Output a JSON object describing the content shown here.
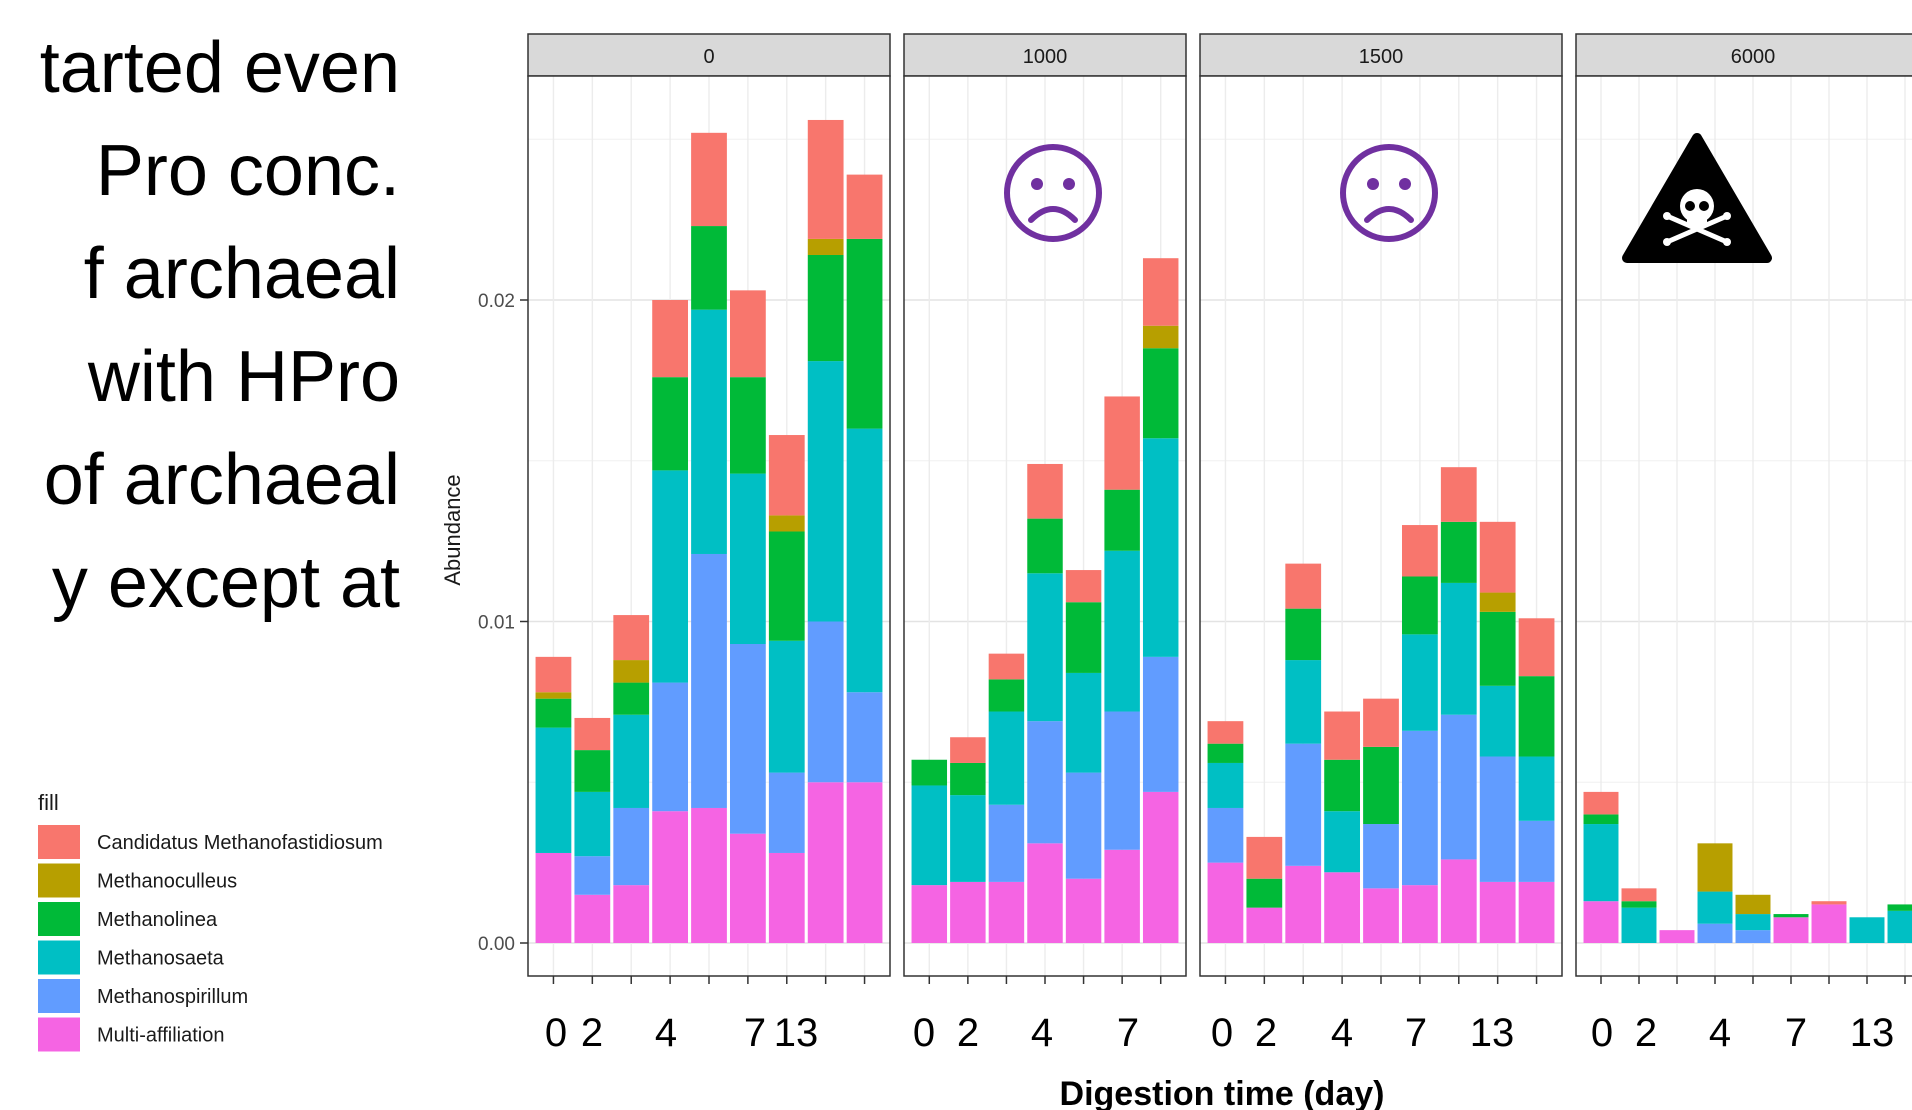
{
  "slide": {
    "lines": [
      "tarted even",
      "Pro conc.",
      "f archaeal",
      " with HPro",
      "of archaeal",
      "y except at"
    ]
  },
  "chart_data": {
    "type": "bar",
    "stacked": true,
    "facets": [
      {
        "label": "0",
        "annotation": "",
        "bars": [
          {
            "Multi-affiliation": 0.0028,
            "Methanospirillum": 0.0,
            "Methanosaeta": 0.0039,
            "Methanolinea": 0.0009,
            "Methanoculleus": 0.0002,
            "Candidatus Methanofastidiosum": 0.0011
          },
          {
            "Multi-affiliation": 0.0015,
            "Methanospirillum": 0.0012,
            "Methanosaeta": 0.002,
            "Methanolinea": 0.0013,
            "Methanoculleus": 0.0,
            "Candidatus Methanofastidiosum": 0.001
          },
          {
            "Multi-affiliation": 0.0018,
            "Methanospirillum": 0.0024,
            "Methanosaeta": 0.0029,
            "Methanolinea": 0.001,
            "Methanoculleus": 0.0007,
            "Candidatus Methanofastidiosum": 0.0014
          },
          {
            "Multi-affiliation": 0.0041,
            "Methanospirillum": 0.004,
            "Methanosaeta": 0.0066,
            "Methanolinea": 0.0029,
            "Methanoculleus": 0.0,
            "Candidatus Methanofastidiosum": 0.0024
          },
          {
            "Multi-affiliation": 0.0042,
            "Methanospirillum": 0.0079,
            "Methanosaeta": 0.0076,
            "Methanolinea": 0.0026,
            "Methanoculleus": 0.0,
            "Candidatus Methanofastidiosum": 0.0029
          },
          {
            "Multi-affiliation": 0.0034,
            "Methanospirillum": 0.0059,
            "Methanosaeta": 0.0053,
            "Methanolinea": 0.003,
            "Methanoculleus": 0.0,
            "Candidatus Methanofastidiosum": 0.0027
          },
          {
            "Multi-affiliation": 0.0028,
            "Methanospirillum": 0.0025,
            "Methanosaeta": 0.0041,
            "Methanolinea": 0.0034,
            "Methanoculleus": 0.0005,
            "Candidatus Methanofastidiosum": 0.0025
          },
          {
            "Multi-affiliation": 0.005,
            "Methanospirillum": 0.005,
            "Methanosaeta": 0.0081,
            "Methanolinea": 0.0033,
            "Methanoculleus": 0.0005,
            "Candidatus Methanofastidiosum": 0.0037
          },
          {
            "Multi-affiliation": 0.005,
            "Methanospirillum": 0.0028,
            "Methanosaeta": 0.0082,
            "Methanolinea": 0.0059,
            "Methanoculleus": 0.0,
            "Candidatus Methanofastidiosum": 0.002
          }
        ]
      },
      {
        "label": "1000",
        "annotation": "☹",
        "bars": [
          {
            "Multi-affiliation": 0.0018,
            "Methanospirillum": 0.0,
            "Methanosaeta": 0.0031,
            "Methanolinea": 0.0008,
            "Methanoculleus": 0.0,
            "Candidatus Methanofastidiosum": 0.0
          },
          {
            "Multi-affiliation": 0.0019,
            "Methanospirillum": 0.0,
            "Methanosaeta": 0.0027,
            "Methanolinea": 0.001,
            "Methanoculleus": 0.0,
            "Candidatus Methanofastidiosum": 0.0008
          },
          {
            "Multi-affiliation": 0.0019,
            "Methanospirillum": 0.0024,
            "Methanosaeta": 0.0029,
            "Methanolinea": 0.001,
            "Methanoculleus": 0.0,
            "Candidatus Methanofastidiosum": 0.0008
          },
          {
            "Multi-affiliation": 0.0031,
            "Methanospirillum": 0.0038,
            "Methanosaeta": 0.0046,
            "Methanolinea": 0.0017,
            "Methanoculleus": 0.0,
            "Candidatus Methanofastidiosum": 0.0017
          },
          {
            "Multi-affiliation": 0.002,
            "Methanospirillum": 0.0033,
            "Methanosaeta": 0.0031,
            "Methanolinea": 0.0022,
            "Methanoculleus": 0.0,
            "Candidatus Methanofastidiosum": 0.001
          },
          {
            "Multi-affiliation": 0.0029,
            "Methanospirillum": 0.0043,
            "Methanosaeta": 0.005,
            "Methanolinea": 0.0019,
            "Methanoculleus": 0.0,
            "Candidatus Methanofastidiosum": 0.0029
          },
          {
            "Multi-affiliation": 0.0047,
            "Methanospirillum": 0.0042,
            "Methanosaeta": 0.0068,
            "Methanolinea": 0.0028,
            "Methanoculleus": 0.0007,
            "Candidatus Methanofastidiosum": 0.0021
          }
        ]
      },
      {
        "label": "1500",
        "annotation": "☹",
        "bars": [
          {
            "Multi-affiliation": 0.0025,
            "Methanospirillum": 0.0017,
            "Methanosaeta": 0.0014,
            "Methanolinea": 0.0006,
            "Methanoculleus": 0.0,
            "Candidatus Methanofastidiosum": 0.0007
          },
          {
            "Multi-affiliation": 0.0011,
            "Methanospirillum": 0.0,
            "Methanosaeta": 0.0,
            "Methanolinea": 0.0009,
            "Methanoculleus": 0.0,
            "Candidatus Methanofastidiosum": 0.0013
          },
          {
            "Multi-affiliation": 0.0024,
            "Methanospirillum": 0.0038,
            "Methanosaeta": 0.0026,
            "Methanolinea": 0.0016,
            "Methanoculleus": 0.0,
            "Candidatus Methanofastidiosum": 0.0014
          },
          {
            "Multi-affiliation": 0.0022,
            "Methanospirillum": 0.0,
            "Methanosaeta": 0.0019,
            "Methanolinea": 0.0016,
            "Methanoculleus": 0.0,
            "Candidatus Methanofastidiosum": 0.0015
          },
          {
            "Multi-affiliation": 0.0017,
            "Methanospirillum": 0.002,
            "Methanosaeta": 0.0,
            "Methanolinea": 0.0024,
            "Methanoculleus": 0.0,
            "Candidatus Methanofastidiosum": 0.0015
          },
          {
            "Multi-affiliation": 0.0018,
            "Methanospirillum": 0.0048,
            "Methanosaeta": 0.003,
            "Methanolinea": 0.0018,
            "Methanoculleus": 0.0,
            "Candidatus Methanofastidiosum": 0.0016
          },
          {
            "Multi-affiliation": 0.0026,
            "Methanospirillum": 0.0045,
            "Methanosaeta": 0.0041,
            "Methanolinea": 0.0019,
            "Methanoculleus": 0.0,
            "Candidatus Methanofastidiosum": 0.0017
          },
          {
            "Multi-affiliation": 0.0019,
            "Methanospirillum": 0.0039,
            "Methanosaeta": 0.0022,
            "Methanolinea": 0.0023,
            "Methanoculleus": 0.0006,
            "Candidatus Methanofastidiosum": 0.0022
          },
          {
            "Multi-affiliation": 0.0019,
            "Methanospirillum": 0.0019,
            "Methanosaeta": 0.002,
            "Methanolinea": 0.0025,
            "Methanoculleus": 0.0,
            "Candidatus Methanofastidiosum": 0.0018
          }
        ]
      },
      {
        "label": "6000",
        "annotation": "☠",
        "bars": [
          {
            "Multi-affiliation": 0.0013,
            "Methanospirillum": 0.0,
            "Methanosaeta": 0.0024,
            "Methanolinea": 0.0003,
            "Methanoculleus": 0.0,
            "Candidatus Methanofastidiosum": 0.0007
          },
          {
            "Multi-affiliation": 0.0,
            "Methanospirillum": 0.0,
            "Methanosaeta": 0.0011,
            "Methanolinea": 0.0002,
            "Methanoculleus": 0.0,
            "Candidatus Methanofastidiosum": 0.0004
          },
          {
            "Multi-affiliation": 0.0004,
            "Methanospirillum": 0.0,
            "Methanosaeta": 0.0,
            "Methanolinea": 0.0,
            "Methanoculleus": 0.0,
            "Candidatus Methanofastidiosum": 0.0
          },
          {
            "Multi-affiliation": 0.0,
            "Methanospirillum": 0.0006,
            "Methanosaeta": 0.001,
            "Methanolinea": 0.0,
            "Methanoculleus": 0.0015,
            "Candidatus Methanofastidiosum": 0.0
          },
          {
            "Multi-affiliation": 0.0,
            "Methanospirillum": 0.0004,
            "Methanosaeta": 0.0005,
            "Methanolinea": 0.0,
            "Methanoculleus": 0.0006,
            "Candidatus Methanofastidiosum": 0.0
          },
          {
            "Multi-affiliation": 0.0008,
            "Methanospirillum": 0.0,
            "Methanosaeta": 0.0,
            "Methanolinea": 0.0001,
            "Methanoculleus": 0.0,
            "Candidatus Methanofastidiosum": 0.0
          },
          {
            "Multi-affiliation": 0.0012,
            "Methanospirillum": 0.0,
            "Methanosaeta": 0.0,
            "Methanolinea": 0.0,
            "Methanoculleus": 0.0,
            "Candidatus Methanofastidiosum": 0.0001
          },
          {
            "Multi-affiliation": 0.0,
            "Methanospirillum": 0.0,
            "Methanosaeta": 0.0008,
            "Methanolinea": 0.0,
            "Methanoculleus": 0.0,
            "Candidatus Methanofastidiosum": 0.0
          },
          {
            "Multi-affiliation": 0.0,
            "Methanospirillum": 0.0,
            "Methanosaeta": 0.001,
            "Methanolinea": 0.0002,
            "Methanoculleus": 0.0,
            "Candidatus Methanofastidiosum": 0.0
          }
        ]
      }
    ],
    "stack_order": [
      "Multi-affiliation",
      "Methanospirillum",
      "Methanosaeta",
      "Methanolinea",
      "Methanoculleus",
      "Candidatus Methanofastidiosum"
    ],
    "colors": {
      "Candidatus Methanofastidiosum": "#F8766D",
      "Methanoculleus": "#B79F00",
      "Methanolinea": "#00BA38",
      "Methanosaeta": "#00BFC4",
      "Methanospirillum": "#619CFF",
      "Multi-affiliation": "#F564E3"
    },
    "x_tick_labels": [
      "0",
      "2",
      "4",
      "7",
      "13"
    ],
    "y_ticks": [
      "0.00",
      "0.01",
      "0.02"
    ],
    "ylim": [
      0,
      0.0265
    ],
    "ylabel": "Abundance",
    "xlabel": "Digestion time (day)",
    "legend": {
      "title": "fill",
      "position": "bottom-left",
      "entries": [
        "Candidatus Methanofastidiosum",
        "Methanoculleus",
        "Methanolinea",
        "Methanosaeta",
        "Methanospirillum",
        "Multi-affiliation"
      ]
    },
    "annotation_colors": {
      "sad-face": "#7030A0",
      "toxic-sign": "#000000"
    },
    "grid": true
  }
}
